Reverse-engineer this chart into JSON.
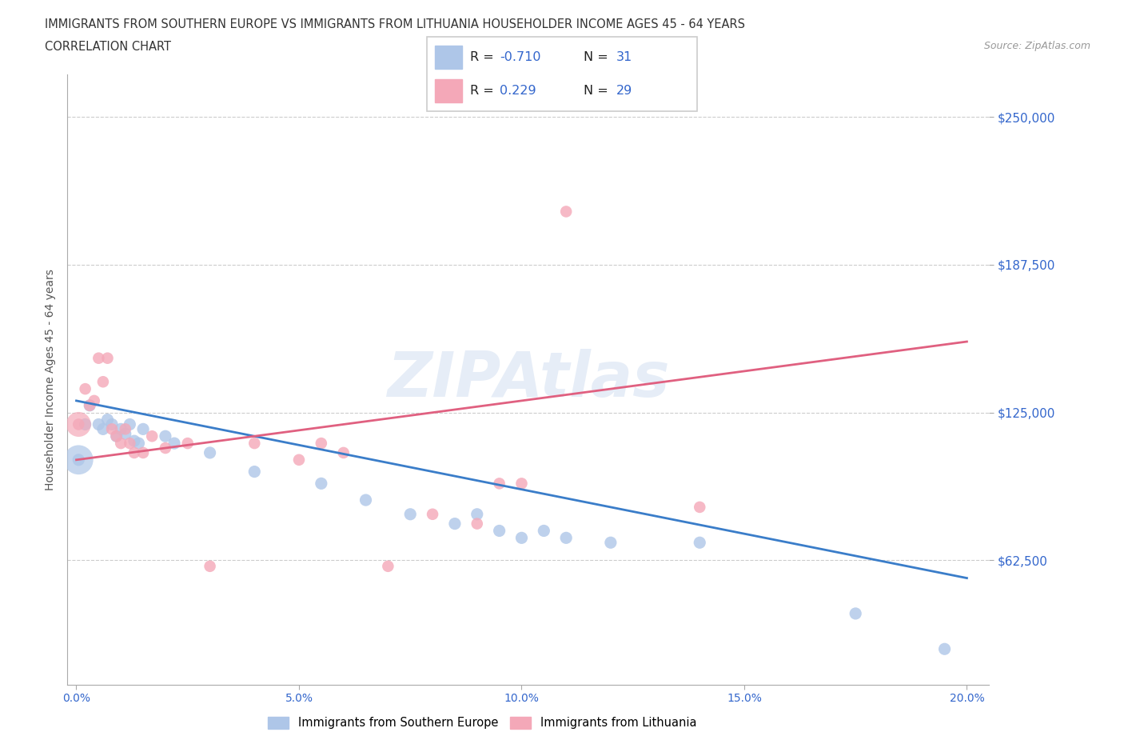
{
  "title_line1": "IMMIGRANTS FROM SOUTHERN EUROPE VS IMMIGRANTS FROM LITHUANIA HOUSEHOLDER INCOME AGES 45 - 64 YEARS",
  "title_line2": "CORRELATION CHART",
  "source_text": "Source: ZipAtlas.com",
  "ylabel": "Householder Income Ages 45 - 64 years",
  "xlim": [
    -0.002,
    0.205
  ],
  "ylim": [
    10000,
    268000
  ],
  "yticks": [
    62500,
    125000,
    187500,
    250000
  ],
  "ytick_labels": [
    "$62,500",
    "$125,000",
    "$187,500",
    "$250,000"
  ],
  "xticks": [
    0.0,
    0.05,
    0.1,
    0.15,
    0.2
  ],
  "xtick_labels": [
    "0.0%",
    "5.0%",
    "10.0%",
    "15.0%",
    "20.0%"
  ],
  "blue_color": "#aec6e8",
  "pink_color": "#f4a8b8",
  "blue_line_color": "#3a7dc9",
  "pink_line_color": "#e06080",
  "R_blue": -0.71,
  "N_blue": 31,
  "R_pink": 0.229,
  "N_pink": 29,
  "watermark": "ZIPAtlas",
  "legend_label_blue": "Immigrants from Southern Europe",
  "legend_label_pink": "Immigrants from Lithuania",
  "blue_scatter_x": [
    0.0005,
    0.002,
    0.003,
    0.005,
    0.006,
    0.007,
    0.008,
    0.009,
    0.01,
    0.011,
    0.012,
    0.013,
    0.014,
    0.015,
    0.02,
    0.022,
    0.03,
    0.04,
    0.055,
    0.065,
    0.075,
    0.085,
    0.09,
    0.095,
    0.1,
    0.105,
    0.11,
    0.12,
    0.14,
    0.175,
    0.195
  ],
  "blue_scatter_y": [
    105000,
    120000,
    128000,
    120000,
    118000,
    122000,
    120000,
    115000,
    118000,
    116000,
    120000,
    113000,
    112000,
    118000,
    115000,
    112000,
    108000,
    100000,
    95000,
    88000,
    82000,
    78000,
    82000,
    75000,
    72000,
    75000,
    72000,
    70000,
    70000,
    40000,
    25000
  ],
  "blue_scatter_sizes": [
    35,
    20,
    20,
    20,
    20,
    20,
    20,
    20,
    20,
    20,
    20,
    20,
    20,
    20,
    20,
    20,
    20,
    20,
    20,
    20,
    20,
    20,
    20,
    20,
    20,
    20,
    20,
    20,
    20,
    20,
    20
  ],
  "pink_scatter_x": [
    0.0005,
    0.002,
    0.003,
    0.004,
    0.005,
    0.006,
    0.007,
    0.008,
    0.009,
    0.01,
    0.011,
    0.012,
    0.013,
    0.015,
    0.017,
    0.02,
    0.025,
    0.03,
    0.04,
    0.05,
    0.055,
    0.06,
    0.07,
    0.08,
    0.09,
    0.095,
    0.1,
    0.11,
    0.14
  ],
  "pink_scatter_y": [
    120000,
    135000,
    128000,
    130000,
    148000,
    138000,
    148000,
    118000,
    115000,
    112000,
    118000,
    112000,
    108000,
    108000,
    115000,
    110000,
    112000,
    60000,
    112000,
    105000,
    112000,
    108000,
    60000,
    82000,
    78000,
    95000,
    95000,
    210000,
    85000
  ],
  "pink_scatter_sizes": [
    35,
    20,
    20,
    20,
    20,
    20,
    20,
    20,
    20,
    20,
    20,
    20,
    20,
    20,
    20,
    20,
    20,
    20,
    20,
    20,
    20,
    20,
    20,
    20,
    20,
    20,
    20,
    20,
    20
  ]
}
